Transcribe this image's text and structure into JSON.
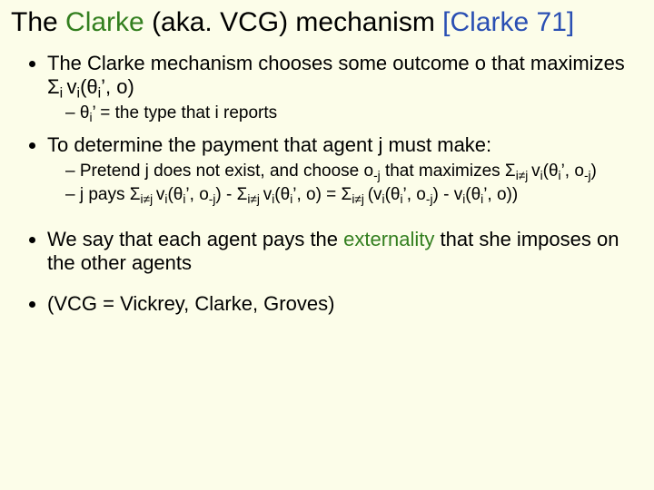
{
  "colors": {
    "background": "#fcfde9",
    "text": "#000000",
    "green": "#337f1f",
    "blue": "#2a4fb3"
  },
  "title": {
    "prefix": "The ",
    "name": "Clarke",
    "mid": " (aka. VCG) mechanism ",
    "cite": "[Clarke 71]",
    "fontsize": 30
  },
  "bullets": [
    {
      "text_html": "The Clarke mechanism chooses some outcome o that maximizes Σ<sub>i </sub>v<sub>i</sub>(θ<sub>i</sub>’, o)",
      "sub": [
        {
          "text_html": "θ<sub>i</sub>’ = the type that i reports"
        }
      ]
    },
    {
      "text_html": "To determine the payment that agent j must make:",
      "sub": [
        {
          "text_html": "Pretend j does not exist, and choose o<sub>-j</sub> that maximizes Σ<sub>i≠j </sub>v<sub>i</sub>(θ<sub>i</sub>’, o<sub>-j</sub>)"
        },
        {
          "text_html": "j pays Σ<sub>i≠j </sub>v<sub>i</sub>(θ<sub>i</sub>’, o<sub>-j</sub>) - Σ<sub>i≠j </sub>v<sub>i</sub>(θ<sub>i</sub>’, o) = Σ<sub>i≠j </sub>(v<sub>i</sub>(θ<sub>i</sub>’, o<sub>-j</sub>) - v<sub>i</sub>(θ<sub>i</sub>’, o))"
        }
      ],
      "space_after": true
    },
    {
      "text_html": "We say that each agent pays the <span class=\"green\">externality</span> that she imposes on the other agents",
      "space_after": true
    },
    {
      "text_html": "(VCG = Vickrey, Clarke, Groves)"
    }
  ],
  "body_fontsize": 22,
  "sub_fontsize": 19
}
